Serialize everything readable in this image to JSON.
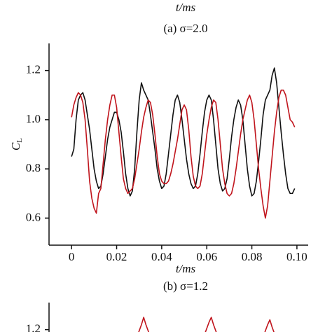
{
  "chart_data": [
    {
      "type": "line",
      "x_label": "t/ms",
      "caption": "(a)  σ=2.0"
    },
    {
      "type": "line",
      "x_label": "t/ms",
      "caption": "(b)  σ=1.2",
      "y_label": "C",
      "y_label_subscript": "L",
      "xlim": [
        -0.01,
        0.105
      ],
      "ylim": [
        0.49,
        1.31
      ],
      "xticks": [
        0,
        0.02,
        0.04,
        0.06,
        0.08,
        {
          "value": 0.1,
          "label": "0.10"
        }
      ],
      "yticks": [
        0.6,
        0.8,
        {
          "value": 1,
          "label": "1.0"
        },
        1.2
      ],
      "x": [
        0,
        0.001,
        0.002,
        0.003,
        0.004,
        0.005,
        0.006,
        0.007,
        0.008,
        0.009,
        0.01,
        0.011,
        0.012,
        0.013,
        0.014,
        0.015,
        0.016,
        0.017,
        0.018,
        0.019,
        0.02,
        0.021,
        0.022,
        0.023,
        0.024,
        0.025,
        0.026,
        0.027,
        0.028,
        0.029,
        0.03,
        0.031,
        0.032,
        0.033,
        0.034,
        0.035,
        0.036,
        0.037,
        0.038,
        0.039,
        0.04,
        0.041,
        0.042,
        0.043,
        0.044,
        0.045,
        0.046,
        0.047,
        0.048,
        0.049,
        0.05,
        0.051,
        0.052,
        0.053,
        0.054,
        0.055,
        0.056,
        0.057,
        0.058,
        0.059,
        0.06,
        0.061,
        0.062,
        0.063,
        0.064,
        0.065,
        0.066,
        0.067,
        0.068,
        0.069,
        0.07,
        0.071,
        0.072,
        0.073,
        0.074,
        0.075,
        0.076,
        0.077,
        0.078,
        0.079,
        0.08,
        0.081,
        0.082,
        0.083,
        0.084,
        0.085,
        0.086,
        0.087,
        0.088,
        0.089,
        0.09,
        0.091,
        0.092,
        0.093,
        0.094,
        0.095,
        0.096,
        0.097,
        0.098,
        0.099
      ],
      "series": [
        {
          "color": "#111111",
          "values": [
            0.85,
            0.88,
            1.0,
            1.08,
            1.1,
            1.11,
            1.08,
            1.02,
            0.96,
            0.88,
            0.8,
            0.75,
            0.72,
            0.73,
            0.78,
            0.85,
            0.92,
            0.97,
            1.0,
            1.03,
            1.03,
            1.0,
            0.95,
            0.87,
            0.78,
            0.72,
            0.69,
            0.71,
            0.8,
            0.95,
            1.08,
            1.15,
            1.12,
            1.1,
            1.08,
            1.02,
            0.95,
            0.88,
            0.8,
            0.75,
            0.72,
            0.73,
            0.78,
            0.86,
            0.94,
            1.02,
            1.08,
            1.1,
            1.07,
            1.0,
            0.92,
            0.84,
            0.78,
            0.74,
            0.72,
            0.73,
            0.78,
            0.86,
            0.95,
            1.03,
            1.08,
            1.1,
            1.08,
            1.0,
            0.9,
            0.8,
            0.74,
            0.71,
            0.72,
            0.76,
            0.84,
            0.93,
            1.0,
            1.05,
            1.08,
            1.06,
            1.0,
            0.9,
            0.8,
            0.73,
            0.69,
            0.7,
            0.75,
            0.83,
            0.92,
            1.02,
            1.08,
            1.1,
            1.12,
            1.18,
            1.21,
            1.15,
            1.05,
            0.95,
            0.86,
            0.78,
            0.72,
            0.7,
            0.7,
            0.72
          ]
        },
        {
          "color": "#c0141c",
          "values": [
            1.01,
            1.06,
            1.09,
            1.11,
            1.1,
            1.07,
            1.0,
            0.88,
            0.75,
            0.68,
            0.64,
            0.62,
            0.7,
            0.72,
            0.82,
            0.92,
            1.0,
            1.06,
            1.1,
            1.1,
            1.05,
            0.95,
            0.85,
            0.76,
            0.72,
            0.7,
            0.71,
            0.72,
            0.76,
            0.82,
            0.88,
            0.95,
            1.01,
            1.05,
            1.08,
            1.07,
            1.02,
            0.94,
            0.85,
            0.78,
            0.75,
            0.74,
            0.74,
            0.75,
            0.78,
            0.82,
            0.87,
            0.92,
            0.98,
            1.04,
            1.06,
            1.04,
            0.96,
            0.85,
            0.77,
            0.73,
            0.72,
            0.73,
            0.78,
            0.86,
            0.94,
            1.0,
            1.05,
            1.08,
            1.07,
            1.0,
            0.9,
            0.8,
            0.74,
            0.7,
            0.69,
            0.7,
            0.74,
            0.8,
            0.87,
            0.94,
            1.0,
            1.04,
            1.08,
            1.1,
            1.07,
            1.0,
            0.9,
            0.8,
            0.72,
            0.65,
            0.6,
            0.65,
            0.75,
            0.85,
            0.95,
            1.03,
            1.09,
            1.12,
            1.12,
            1.1,
            1.05,
            1.0,
            0.99,
            0.97
          ]
        }
      ]
    },
    {
      "type": "line",
      "xlim": [
        -0.01,
        0.105
      ],
      "ylim": [
        0.49,
        1.31
      ],
      "yticks": [
        1.2
      ],
      "x": [
        0.029,
        0.031,
        0.032,
        0.033,
        0.035,
        0.036,
        0.059,
        0.061,
        0.062,
        0.063,
        0.065,
        0.066,
        0.085,
        0.087,
        0.088,
        0.089,
        0.091,
        0.092
      ],
      "series": [
        {
          "color": "#c0141c",
          "values": [
            1.17,
            1.22,
            1.25,
            1.22,
            1.17,
            null,
            1.18,
            1.23,
            1.25,
            1.22,
            1.17,
            null,
            1.17,
            1.22,
            1.24,
            1.21,
            1.16,
            null
          ]
        }
      ]
    }
  ]
}
